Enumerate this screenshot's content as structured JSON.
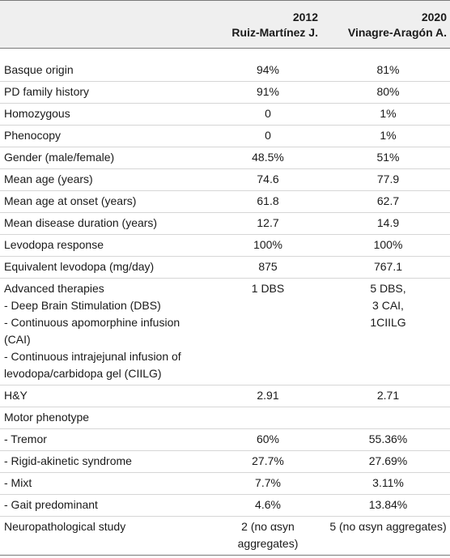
{
  "header": {
    "col2_line1": "2012",
    "col2_line2": "Ruiz-Martínez J.",
    "col3_line1": "2020",
    "col3_line2": "Vinagre-Aragón A."
  },
  "rows": [
    {
      "label": "Basque origin",
      "v2012": "94%",
      "v2020": "81%"
    },
    {
      "label": "PD family history",
      "v2012": "91%",
      "v2020": "80%"
    },
    {
      "label": "Homozygous",
      "v2012": "0",
      "v2020": "1%"
    },
    {
      "label": "Phenocopy",
      "v2012": "0",
      "v2020": "1%"
    },
    {
      "label": "Gender (male/female)",
      "v2012": "48.5%",
      "v2020": "51%"
    },
    {
      "label": "Mean age (years)",
      "v2012": "74.6",
      "v2020": "77.9"
    },
    {
      "label": "Mean age at onset (years)",
      "v2012": "61.8",
      "v2020": "62.7"
    },
    {
      "label": "Mean disease duration (years)",
      "v2012": "12.7",
      "v2020": "14.9"
    },
    {
      "label": "Levodopa response",
      "v2012": "100%",
      "v2020": "100%"
    },
    {
      "label": "Equivalent levodopa (mg/day)",
      "v2012": "875",
      "v2020": "767.1"
    }
  ],
  "advanced": {
    "label": "Advanced therapies",
    "sub": [
      "- Deep Brain Stimulation (DBS)",
      "- Continuous apomorphine infusion",
      "(CAI)",
      "- Continuous intrajejunal infusion of",
      "levodopa/carbidopa gel (CIILG)"
    ],
    "v2012": "1 DBS",
    "v2020_lines": [
      "5 DBS,",
      "3 CAI,",
      "1CIILG"
    ]
  },
  "hy": {
    "label": "H&Y",
    "v2012": "2.91",
    "v2020": "2.71"
  },
  "motor": {
    "label": "Motor phenotype",
    "items": [
      {
        "label": "- Tremor",
        "v2012": "60%",
        "v2020": "55.36%"
      },
      {
        "label": "- Rigid-akinetic syndrome",
        "v2012": "27.7%",
        "v2020": "27.69%"
      },
      {
        "label": "- Mixt",
        "v2012": "7.7%",
        "v2020": "3.11%"
      },
      {
        "label": "- Gait predominant",
        "v2012": "4.6%",
        "v2020": "13.84%"
      }
    ]
  },
  "neuro": {
    "label": "Neuropathological study",
    "v2012_lines": [
      "2 (no αsyn",
      "aggregates)"
    ],
    "v2020": "5 (no αsyn aggregates)"
  }
}
